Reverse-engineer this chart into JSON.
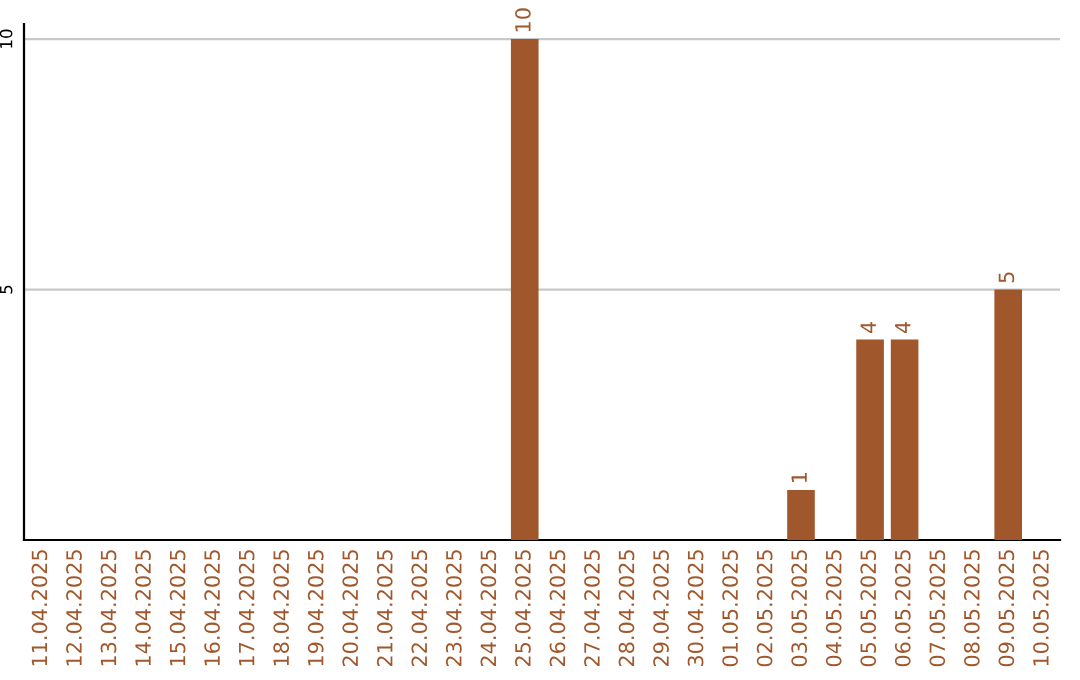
{
  "chart_data": {
    "type": "bar",
    "categories": [
      "11.04.2025",
      "12.04.2025",
      "13.04.2025",
      "14.04.2025",
      "15.04.2025",
      "16.04.2025",
      "17.04.2025",
      "18.04.2025",
      "19.04.2025",
      "20.04.2025",
      "21.04.2025",
      "22.04.2025",
      "23.04.2025",
      "24.04.2025",
      "25.04.2025",
      "26.04.2025",
      "27.04.2025",
      "28.04.2025",
      "29.04.2025",
      "30.04.2025",
      "01.05.2025",
      "02.05.2025",
      "03.05.2025",
      "04.05.2025",
      "05.05.2025",
      "06.05.2025",
      "07.05.2025",
      "08.05.2025",
      "09.05.2025",
      "10.05.2025"
    ],
    "values": [
      0,
      0,
      0,
      0,
      0,
      0,
      0,
      0,
      0,
      0,
      0,
      0,
      0,
      0,
      10,
      0,
      0,
      0,
      0,
      0,
      0,
      0,
      1,
      0,
      4,
      4,
      0,
      0,
      5,
      0
    ],
    "value_labels": [
      null,
      null,
      null,
      null,
      null,
      null,
      null,
      null,
      null,
      null,
      null,
      null,
      null,
      null,
      "10",
      null,
      null,
      null,
      null,
      null,
      null,
      null,
      "1",
      null,
      "4",
      "4",
      null,
      null,
      "5",
      null
    ],
    "color": "#a0572b",
    "ylim": [
      0,
      10.3
    ],
    "yticks": [
      5,
      10
    ],
    "grid": "y"
  }
}
